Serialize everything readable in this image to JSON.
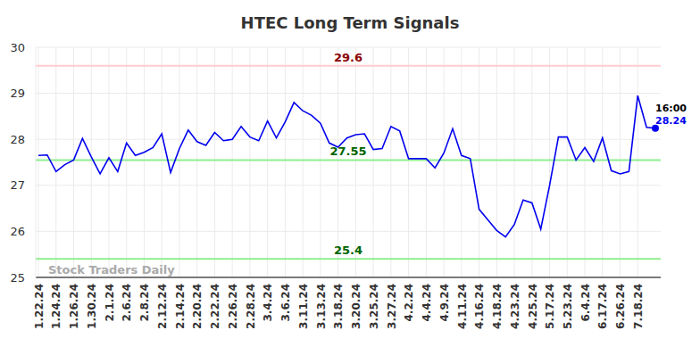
{
  "chart_data": {
    "type": "line",
    "title": "HTEC Long Term Signals",
    "watermark": "Stock Traders Daily",
    "color": "#0000ee",
    "marker": "last",
    "grid": true,
    "categories": [
      "1.22.24",
      null,
      "1.24.24",
      null,
      "1.26.24",
      null,
      "1.30.24",
      null,
      "2.1.24",
      null,
      "2.6.24",
      null,
      "2.8.24",
      null,
      "2.12.24",
      null,
      "2.14.24",
      null,
      "2.20.24",
      null,
      "2.22.24",
      null,
      "2.26.24",
      null,
      "2.28.24",
      null,
      "3.4.24",
      null,
      "3.6.24",
      null,
      "3.11.24",
      null,
      "3.13.24",
      null,
      "3.18.24",
      null,
      "3.20.24",
      null,
      "3.25.24",
      null,
      "3.27.24",
      null,
      "4.2.24",
      null,
      "4.4.24",
      null,
      "4.9.24",
      null,
      "4.11.24",
      null,
      "4.16.24",
      null,
      "4.18.24",
      null,
      "4.23.24",
      null,
      "4.25.24",
      null,
      "5.17.24",
      null,
      "5.23.24",
      null,
      "6.4.24",
      null,
      "6.17.24",
      null,
      "6.26.24",
      null,
      "7.18.24",
      null,
      null
    ],
    "values": [
      27.65,
      27.66,
      27.3,
      27.45,
      27.55,
      28.02,
      27.62,
      27.25,
      27.6,
      27.3,
      27.92,
      27.65,
      27.72,
      27.82,
      28.12,
      27.28,
      27.8,
      28.2,
      27.95,
      27.87,
      28.15,
      27.97,
      28.0,
      28.28,
      28.05,
      27.97,
      28.4,
      28.03,
      28.38,
      28.8,
      28.62,
      28.52,
      28.35,
      27.92,
      27.83,
      28.03,
      28.1,
      28.12,
      27.78,
      27.8,
      28.28,
      28.18,
      27.58,
      27.58,
      27.58,
      27.38,
      27.7,
      28.23,
      27.65,
      27.58,
      26.48,
      26.25,
      26.02,
      25.88,
      26.15,
      26.68,
      26.62,
      26.05,
      27.0,
      28.05,
      28.05,
      27.55,
      27.82,
      27.52,
      28.03,
      27.32,
      27.25,
      27.3,
      28.95,
      28.26,
      28.24
    ],
    "ylim": [
      25,
      30
    ],
    "yticks": [
      25,
      26,
      27,
      28,
      29,
      30
    ],
    "last_time": "16:00",
    "signals": [
      {
        "value": 29.6,
        "color": "#ffcccc",
        "label_color": "#8b0000"
      },
      {
        "value": 27.55,
        "color": "#90ee90",
        "label_color": "#006400"
      },
      {
        "value": 25.4,
        "color": "#90ee90",
        "label_color": "#006400"
      }
    ]
  }
}
